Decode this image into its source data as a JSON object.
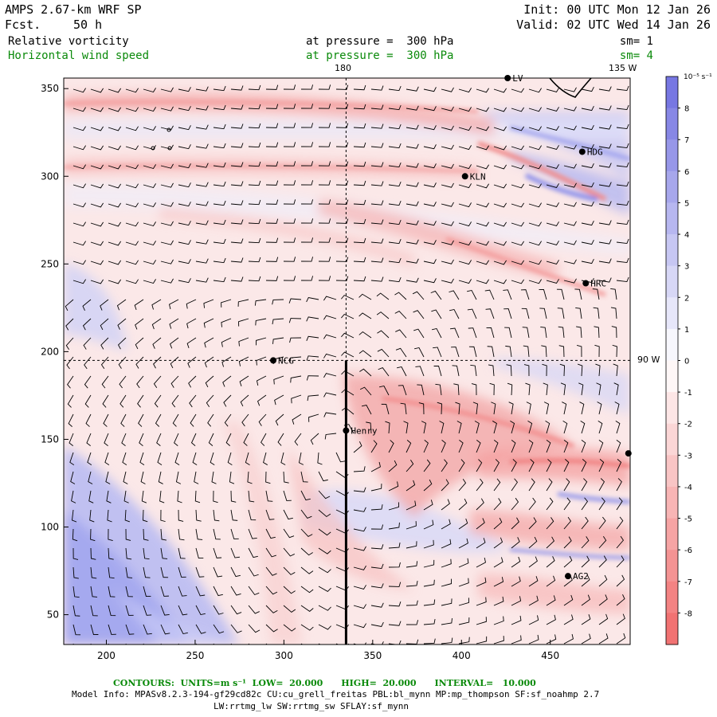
{
  "header": {
    "model": "AMPS 2.67-km WRF SP",
    "fcst_label": "Fcst.",
    "fcst_value": "50 h",
    "init": "Init: 00 UTC Mon 12 Jan 26",
    "valid": "Valid: 02 UTC Wed 14 Jan 26"
  },
  "fields": [
    {
      "name": "Relative vorticity",
      "level": "at pressure =  300 hPa",
      "sm": "sm= 1",
      "color": "#000000"
    },
    {
      "name": "Horizontal wind speed",
      "level": "at pressure =  300 hPa",
      "sm": "sm= 4",
      "color": "#0a8a0a"
    }
  ],
  "map": {
    "meridian_label": "180",
    "meridian_label_2": "135 W",
    "parallel_label": "90 W",
    "x_ticks": [
      200,
      250,
      300,
      350,
      400,
      450
    ],
    "y_ticks": [
      50,
      100,
      150,
      200,
      250,
      300,
      350
    ],
    "x_range": [
      176,
      495
    ],
    "y_range": [
      33,
      356
    ],
    "stations": [
      {
        "label": "LV",
        "x": 426,
        "y": 356
      },
      {
        "label": "HDG",
        "x": 468,
        "y": 314
      },
      {
        "label": "KLN",
        "x": 402,
        "y": 300
      },
      {
        "label": "HRC",
        "x": 470,
        "y": 239
      },
      {
        "label": "NCG",
        "x": 294,
        "y": 195
      },
      {
        "label": "Henry",
        "x": 335,
        "y": 155
      },
      {
        "label": "AG2",
        "x": 460,
        "y": 72
      },
      {
        "label": "",
        "x": 494,
        "y": 142
      }
    ],
    "colors": {
      "positive": "#6f6fe0",
      "negative": "#f06a6a"
    }
  },
  "colorbar": {
    "unit_label": "10⁻⁵ s⁻¹",
    "labels": [
      "8",
      "7",
      "6",
      "5",
      "4",
      "3",
      "2",
      "1",
      "0",
      "-1",
      "-2",
      "-3",
      "-4",
      "-5",
      "-6",
      "-7",
      "-8"
    ]
  },
  "footer": {
    "contours": "CONTOURS:  UNITS=m s⁻¹  LOW=  20.000      HIGH=  20.000      INTERVAL=   10.000",
    "model_info": "Model Info: MPASv8.2.3-194-gf29cd82c CU:cu_grell_freitas PBL:bl_mynn MP:mp_thompson SF:sf_noahmp 2.7",
    "physics": "LW:rrtmg_lw SW:rrtmg_sw SFLAY:sf_mynn"
  }
}
